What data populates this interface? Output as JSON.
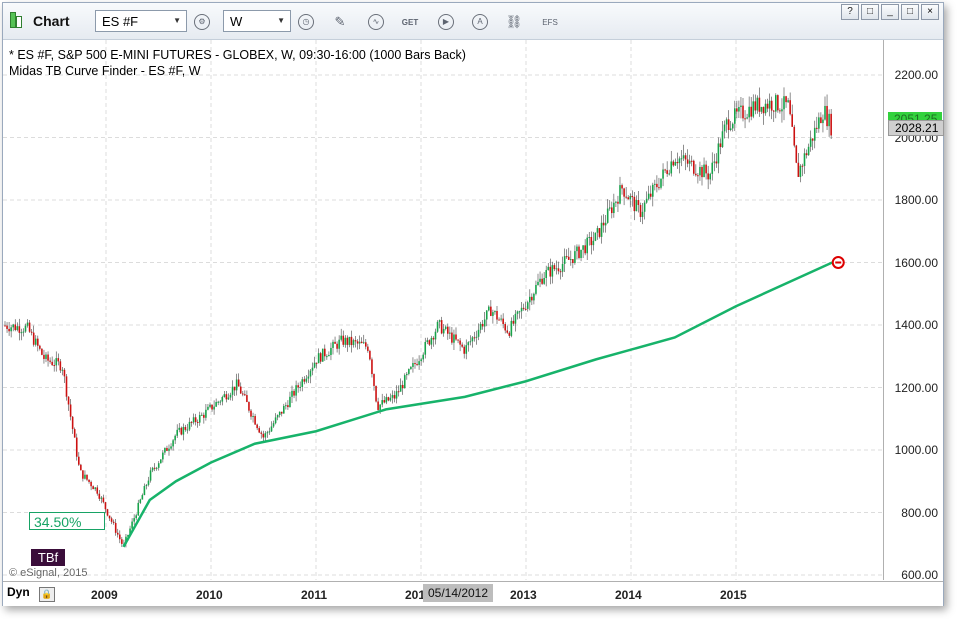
{
  "toolbar": {
    "title": "Chart",
    "symbol": "ES #F",
    "interval": "W",
    "efs_label": "EFS",
    "window_buttons": [
      "?",
      "□",
      "_",
      "□",
      "×"
    ]
  },
  "chart": {
    "title_line1": "* ES #F, S&P 500 E-MINI FUTURES - GLOBEX, W, 09:30-16:00 (1000 Bars Back)",
    "title_line2": "Midas TB Curve Finder - ES #F, W",
    "pct_label": "34.50%",
    "tbf_label": "TBf",
    "copyright": "© eSignal, 2015",
    "y_axis_labels": [
      "2200.00",
      "2000.00",
      "1800.00",
      "1600.00",
      "1400.00",
      "1200.00",
      "1000.00",
      "800.00",
      "600.00"
    ],
    "x_axis_labels": [
      "2009",
      "2010",
      "2011",
      "2012",
      "2013",
      "2014",
      "2015"
    ],
    "dyn_label": "Dyn",
    "date_cursor": "05/14/2012",
    "price_tag_green": "2051.25",
    "price_tag_gray": "2028.21",
    "colors": {
      "up_candle": "#17a34a",
      "down_candle": "#cc1111",
      "midas_curve": "#17b36a",
      "marker": "#dd0000"
    }
  },
  "chart_data": {
    "type": "candlestick",
    "ylim": [
      600,
      2200
    ],
    "y_ticks": [
      600,
      800,
      1000,
      1200,
      1400,
      1600,
      1800,
      2000,
      2200
    ],
    "x_ticks": [
      "2009",
      "2010",
      "2011",
      "2012",
      "2013",
      "2014",
      "2015"
    ],
    "price_path": [
      {
        "x": "2008-01",
        "y": 1400
      },
      {
        "x": "2008-04",
        "y": 1390
      },
      {
        "x": "2008-06",
        "y": 1290
      },
      {
        "x": "2008-08",
        "y": 1270
      },
      {
        "x": "2008-10",
        "y": 930
      },
      {
        "x": "2008-12",
        "y": 870
      },
      {
        "x": "2009-03",
        "y": 690
      },
      {
        "x": "2009-06",
        "y": 920
      },
      {
        "x": "2009-09",
        "y": 1050
      },
      {
        "x": "2009-12",
        "y": 1110
      },
      {
        "x": "2010-04",
        "y": 1210
      },
      {
        "x": "2010-07",
        "y": 1040
      },
      {
        "x": "2010-09",
        "y": 1120
      },
      {
        "x": "2011-01",
        "y": 1290
      },
      {
        "x": "2011-04",
        "y": 1350
      },
      {
        "x": "2011-07",
        "y": 1330
      },
      {
        "x": "2011-08",
        "y": 1140
      },
      {
        "x": "2011-10",
        "y": 1170
      },
      {
        "x": "2012-03",
        "y": 1400
      },
      {
        "x": "2012-06",
        "y": 1320
      },
      {
        "x": "2012-09",
        "y": 1450
      },
      {
        "x": "2012-11",
        "y": 1380
      },
      {
        "x": "2013-03",
        "y": 1560
      },
      {
        "x": "2013-06",
        "y": 1610
      },
      {
        "x": "2013-09",
        "y": 1680
      },
      {
        "x": "2013-12",
        "y": 1840
      },
      {
        "x": "2014-02",
        "y": 1760
      },
      {
        "x": "2014-06",
        "y": 1940
      },
      {
        "x": "2014-10",
        "y": 1880
      },
      {
        "x": "2014-12",
        "y": 2050
      },
      {
        "x": "2015-03",
        "y": 2100
      },
      {
        "x": "2015-05",
        "y": 2110
      },
      {
        "x": "2015-07",
        "y": 2100
      },
      {
        "x": "2015-08",
        "y": 1880
      },
      {
        "x": "2015-10",
        "y": 2020
      },
      {
        "x": "2015-11",
        "y": 2090
      },
      {
        "x": "2015-12",
        "y": 2028
      }
    ],
    "midas_curve": [
      {
        "x": "2009-03",
        "y": 690
      },
      {
        "x": "2009-06",
        "y": 840
      },
      {
        "x": "2009-09",
        "y": 900
      },
      {
        "x": "2010-01",
        "y": 960
      },
      {
        "x": "2010-06",
        "y": 1020
      },
      {
        "x": "2011-01",
        "y": 1060
      },
      {
        "x": "2011-09",
        "y": 1130
      },
      {
        "x": "2012-06",
        "y": 1170
      },
      {
        "x": "2013-01",
        "y": 1220
      },
      {
        "x": "2013-09",
        "y": 1290
      },
      {
        "x": "2014-06",
        "y": 1360
      },
      {
        "x": "2015-01",
        "y": 1460
      },
      {
        "x": "2015-12",
        "y": 1600
      }
    ],
    "last_price": 2028.21,
    "midas_last": 1600
  }
}
